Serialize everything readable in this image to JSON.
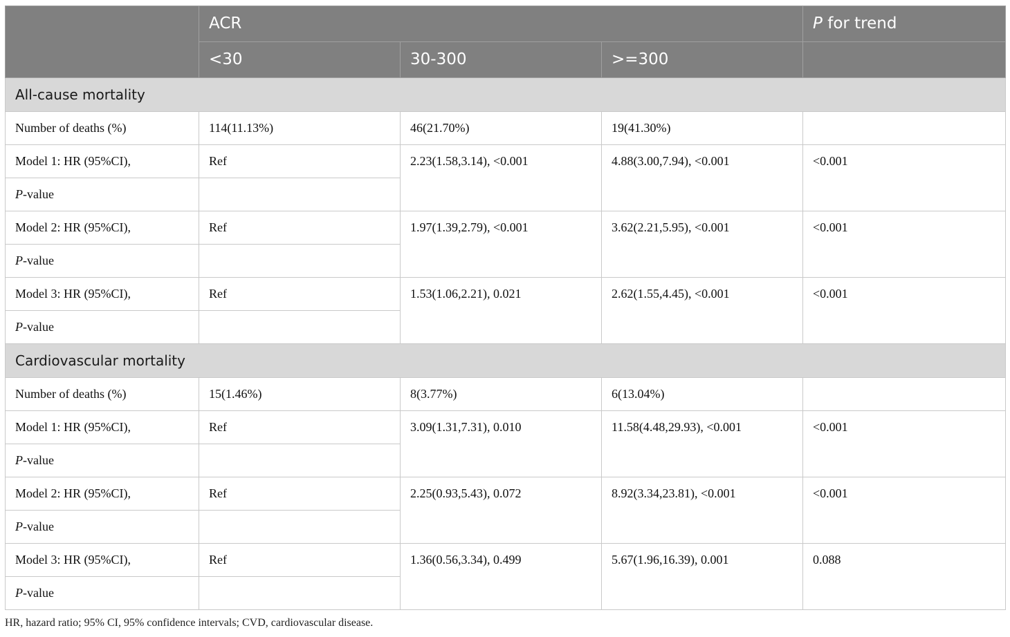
{
  "header": {
    "group_label": "ACR",
    "trend_label_italic": "P",
    "trend_label_rest": " for trend",
    "sub": [
      "<30",
      "30-300",
      ">=300"
    ]
  },
  "sections": [
    {
      "title": "All-cause mortality",
      "deaths": {
        "label": "Number of deaths (%)",
        "c1": "114(11.13%)",
        "c2": "46(21.70%)",
        "c3": "19(41.30%)",
        "c4": ""
      },
      "models": [
        {
          "label": "Model 1: HR (95%CI),",
          "p_italic": "P",
          "p_rest": "-value",
          "c1": "Ref",
          "c2": "2.23(1.58,3.14), <0.001",
          "c3": "4.88(3.00,7.94), <0.001",
          "c4": "<0.001"
        },
        {
          "label": "Model 2: HR (95%CI),",
          "p_italic": "P",
          "p_rest": "-value",
          "c1": "Ref",
          "c2": "1.97(1.39,2.79), <0.001",
          "c3": "3.62(2.21,5.95), <0.001",
          "c4": "<0.001"
        },
        {
          "label": "Model 3: HR (95%CI),",
          "p_italic": "P",
          "p_rest": "-value",
          "c1": "Ref",
          "c2": "1.53(1.06,2.21), 0.021",
          "c3": "2.62(1.55,4.45), <0.001",
          "c4": "<0.001"
        }
      ]
    },
    {
      "title": "Cardiovascular mortality",
      "deaths": {
        "label": "Number of deaths (%)",
        "c1": "15(1.46%)",
        "c2": "8(3.77%)",
        "c3": "6(13.04%)",
        "c4": ""
      },
      "models": [
        {
          "label": "Model 1: HR (95%CI),",
          "p_italic": "P",
          "p_rest": "-value",
          "c1": "Ref",
          "c2": "3.09(1.31,7.31), 0.010",
          "c3": "11.58(4.48,29.93), <0.001",
          "c4": "<0.001"
        },
        {
          "label": "Model 2: HR (95%CI),",
          "p_italic": "P",
          "p_rest": "-value",
          "c1": "Ref",
          "c2": "2.25(0.93,5.43), 0.072",
          "c3": "8.92(3.34,23.81), <0.001",
          "c4": "<0.001"
        },
        {
          "label": "Model 3: HR (95%CI),",
          "p_italic": "P",
          "p_rest": "-value",
          "c1": "Ref",
          "c2": "1.36(0.56,3.34), 0.499",
          "c3": "5.67(1.96,16.39), 0.001",
          "c4": "0.088"
        }
      ]
    }
  ],
  "footnote": "HR, hazard ratio; 95% CI, 95% confidence intervals; CVD, cardiovascular disease."
}
